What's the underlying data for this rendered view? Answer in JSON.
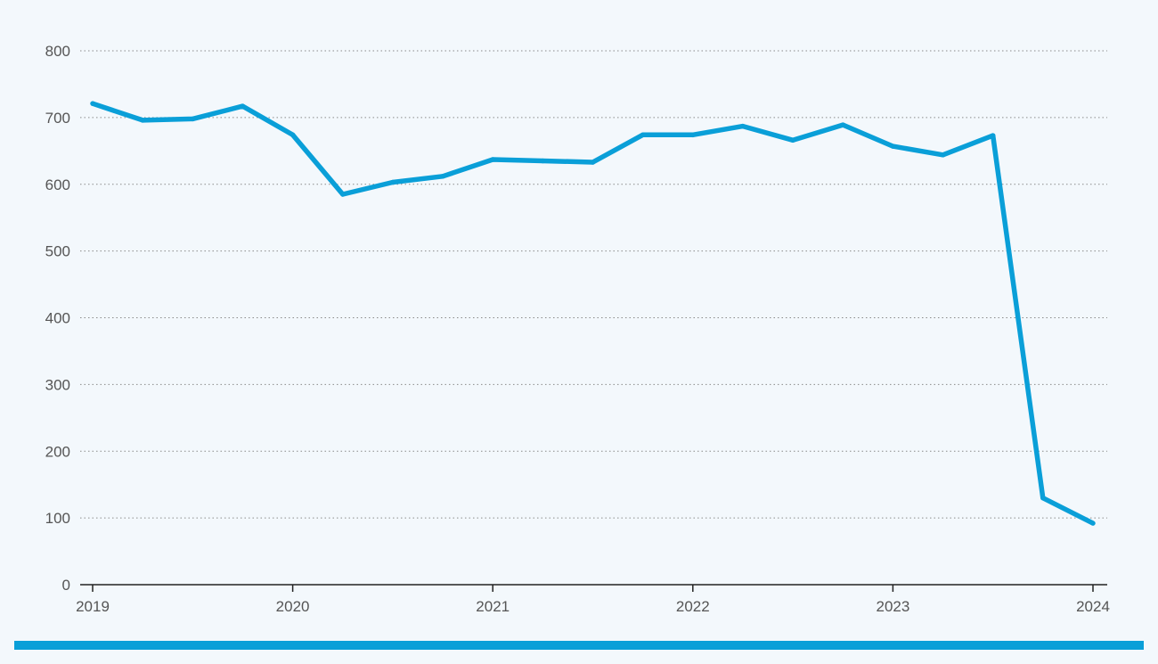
{
  "colors": {
    "background": "#f3f8fc",
    "series": "#0a9fd8",
    "accent_bar": "#0a9fd8"
  },
  "chart_data": {
    "type": "line",
    "title": "",
    "xlabel": "",
    "ylabel": "",
    "ylim": [
      0,
      800
    ],
    "y_ticks": [
      "0",
      "100",
      "200",
      "300",
      "400",
      "500",
      "600",
      "700",
      "800"
    ],
    "x_ticks": [
      "2019",
      "2020",
      "2021",
      "2022",
      "2023",
      "2024"
    ],
    "grid": "horizontal dotted",
    "legend": "none",
    "series": [
      {
        "x": [
          "2019-Q1",
          "2019-Q2",
          "2019-Q3",
          "2019-Q4",
          "2020-Q1",
          "2020-Q2",
          "2020-Q3",
          "2020-Q4",
          "2021-Q1",
          "2021-Q2",
          "2021-Q3",
          "2021-Q4",
          "2022-Q1",
          "2022-Q2",
          "2022-Q3",
          "2022-Q4",
          "2023-Q1",
          "2023-Q2",
          "2023-Q3",
          "2023-Q4",
          "2024-Q1"
        ],
        "values": [
          721,
          696,
          698,
          717,
          674,
          585,
          603,
          612,
          637,
          635,
          633,
          674,
          674,
          687,
          666,
          689,
          657,
          644,
          673,
          130,
          92
        ]
      }
    ]
  }
}
